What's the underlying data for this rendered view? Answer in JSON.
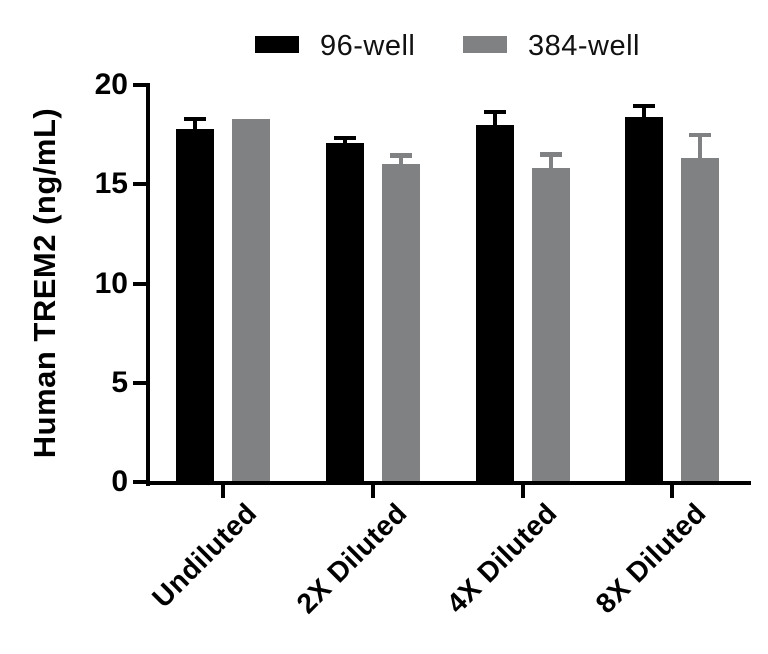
{
  "chart_data": {
    "type": "bar",
    "title": "",
    "xlabel": "",
    "ylabel": "Human TREM2 (ng/mL)",
    "categories": [
      "Undiluted",
      "2X Diluted",
      "4X Diluted",
      "8X Diluted"
    ],
    "series": [
      {
        "name": "96-well",
        "color": "#000000",
        "values": [
          17.8,
          17.1,
          18.0,
          18.4
        ],
        "errors_up": [
          0.6,
          0.35,
          0.75,
          0.65
        ]
      },
      {
        "name": "384-well",
        "color": "#808183",
        "values": [
          18.3,
          16.0,
          15.8,
          16.3
        ],
        "errors_up": [
          0,
          0.55,
          0.8,
          1.3
        ]
      }
    ],
    "ylim": [
      0,
      20
    ],
    "yticks": [
      0,
      5,
      10,
      15,
      20
    ],
    "grid": false,
    "legend_position": "top",
    "error_bars": "upper whisker with cap",
    "colors": {
      "axis": "#000000",
      "background": "#ffffff"
    }
  }
}
